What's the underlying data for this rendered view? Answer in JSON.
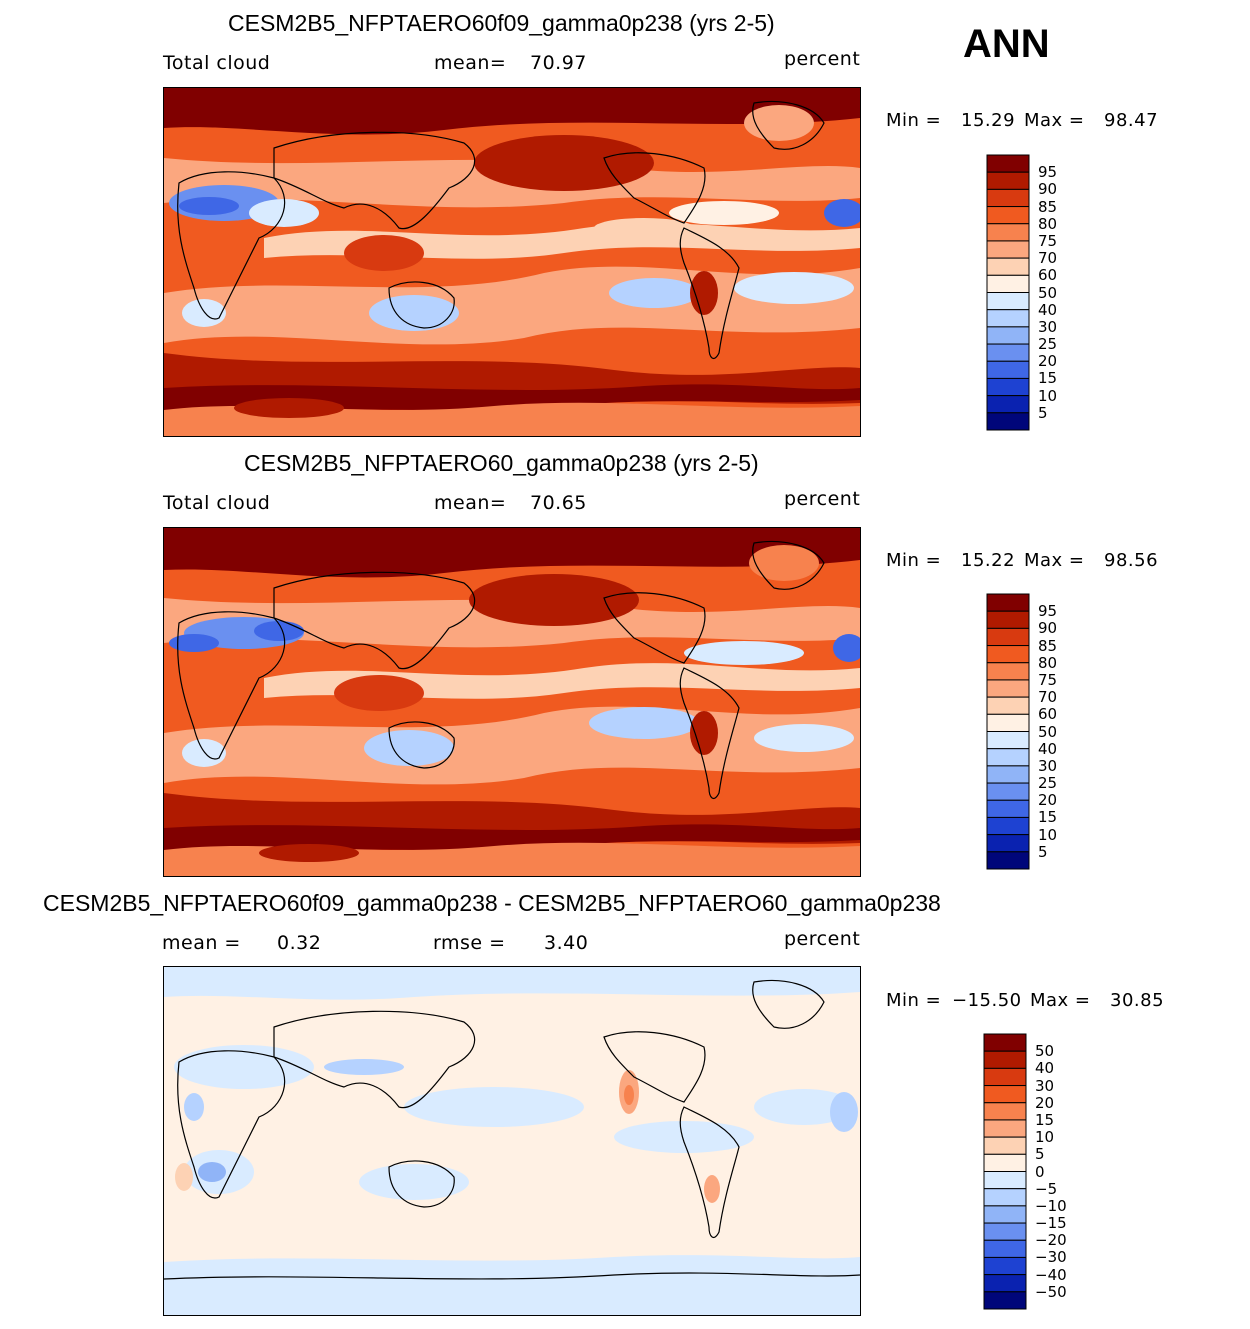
{
  "season": "ANN",
  "chart_data": [
    {
      "type": "heatmap",
      "title": "CESM2B5_NFPTAERO60f09_gamma0p238 (yrs 2-5)",
      "variable": "Total cloud",
      "stat_label": "mean=",
      "stat_value": "70.97",
      "units": "percent",
      "min_label": "Min =",
      "min_value": "15.29",
      "max_label": "Max =",
      "max_value": "98.47",
      "levels": [
        "95",
        "90",
        "85",
        "80",
        "75",
        "70",
        "60",
        "50",
        "40",
        "30",
        "25",
        "20",
        "15",
        "10",
        "5"
      ],
      "colors": [
        "#800000",
        "#b01a00",
        "#d83a10",
        "#f05a20",
        "#f7824e",
        "#fba77f",
        "#fdd2b4",
        "#fff1e4",
        "#d9ebff",
        "#b5d2ff",
        "#90b4f7",
        "#6a90f0",
        "#3f67e6",
        "#1e42d2",
        "#0a22b0",
        "#00067a"
      ]
    },
    {
      "type": "heatmap",
      "title": "CESM2B5_NFPTAERO60_gamma0p238 (yrs 2-5)",
      "variable": "Total cloud",
      "stat_label": "mean=",
      "stat_value": "70.65",
      "units": "percent",
      "min_label": "Min =",
      "min_value": "15.22",
      "max_label": "Max =",
      "max_value": "98.56",
      "levels": [
        "95",
        "90",
        "85",
        "80",
        "75",
        "70",
        "60",
        "50",
        "40",
        "30",
        "25",
        "20",
        "15",
        "10",
        "5"
      ],
      "colors": [
        "#800000",
        "#b01a00",
        "#d83a10",
        "#f05a20",
        "#f7824e",
        "#fba77f",
        "#fdd2b4",
        "#fff1e4",
        "#d9ebff",
        "#b5d2ff",
        "#90b4f7",
        "#6a90f0",
        "#3f67e6",
        "#1e42d2",
        "#0a22b0",
        "#00067a"
      ]
    },
    {
      "type": "heatmap",
      "title": "CESM2B5_NFPTAERO60f09_gamma0p238 - CESM2B5_NFPTAERO60_gamma0p238",
      "stat_label": "mean =",
      "stat_value": "0.32",
      "stat2_label": "rmse =",
      "stat2_value": "3.40",
      "units": "percent",
      "min_label": "Min =",
      "min_value": "−15.50",
      "max_label": "Max =",
      "max_value": "30.85",
      "levels": [
        "50",
        "40",
        "30",
        "20",
        "15",
        "10",
        "5",
        "0",
        "−5",
        "−10",
        "−15",
        "−20",
        "−30",
        "−40",
        "−50"
      ],
      "colors": [
        "#800000",
        "#b01a00",
        "#d83a10",
        "#f05a20",
        "#f7824e",
        "#fba77f",
        "#fdd2b4",
        "#fff1e4",
        "#d9ebff",
        "#b5d2ff",
        "#90b4f7",
        "#6a90f0",
        "#3f67e6",
        "#1e42d2",
        "#0a22b0",
        "#00067a"
      ]
    }
  ]
}
